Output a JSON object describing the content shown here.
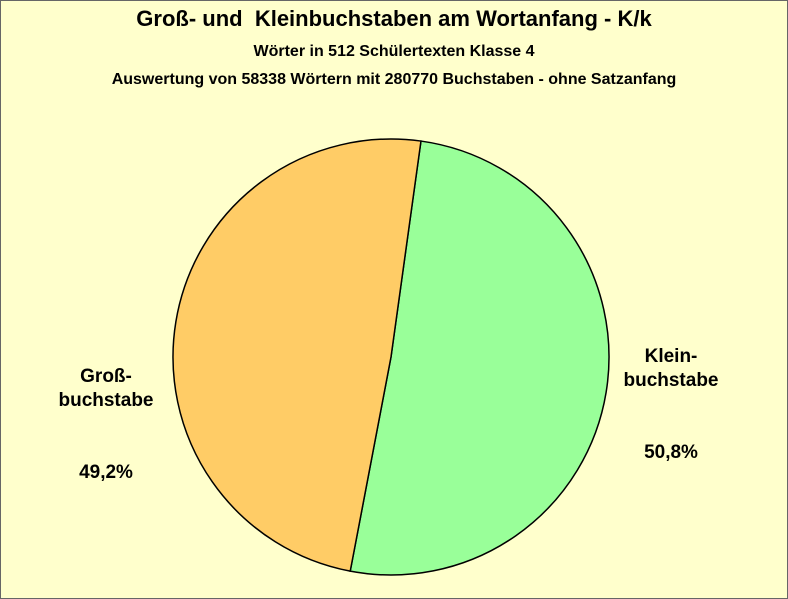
{
  "chart_data": {
    "type": "pie",
    "title": "Groß- und  Kleinbuchstaben am Wortanfang - K/k",
    "subtitle": "Wörter in 512 Schülertexten Klasse 4",
    "subtitle2": "Auswertung von 58338 Wörtern mit 280770 Buchstaben - ohne Satzanfang",
    "slices": [
      {
        "label": "Klein-\nbuchstabe",
        "value_label": "50,8%",
        "value": 50.8,
        "color": "#99FF99"
      },
      {
        "label": "Groß-\nbuchstabe",
        "value_label": "49,2%",
        "value": 49.2,
        "color": "#FFCC66"
      }
    ],
    "start_angle_deg": 7.9
  },
  "colors": {
    "background": "#FFFFCC",
    "outline": "#000000"
  }
}
